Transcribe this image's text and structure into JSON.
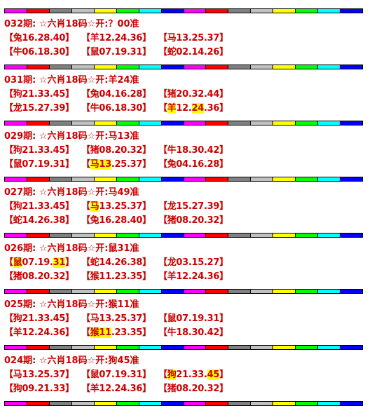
{
  "blocks": [
    {
      "title": "032期: ☆六肖18码☆开:？00准",
      "rows": [
        [
          [
            "【兔16.28.40】"
          ],
          [
            "【羊12.24.36】"
          ],
          [
            "【马13.25.37】"
          ]
        ],
        [
          [
            "【牛06.18.30】"
          ],
          [
            "【鼠07.19.31】"
          ],
          [
            "【蛇02.14.26】"
          ]
        ]
      ]
    },
    {
      "title": "031期: ☆六肖18码☆开:羊24准",
      "rows": [
        [
          [
            "【狗21.33.45】"
          ],
          [
            "【兔04.16.28】"
          ],
          [
            "【猪20.32.44】"
          ]
        ],
        [
          [
            "【龙15.27.39】"
          ],
          [
            "【牛06.18.30】"
          ],
          [
            "【",
            {
              "text": "羊",
              "highlight": true
            },
            "12.",
            {
              "text": "24",
              "highlight": true
            },
            ".36】"
          ]
        ]
      ]
    },
    {
      "title": "029期: ☆六肖18码☆开:马13准",
      "rows": [
        [
          [
            "【狗21.33.45】"
          ],
          [
            "【猪08.20.32】"
          ],
          [
            "【牛18.30.42】"
          ]
        ],
        [
          [
            "【鼠07.19.31】"
          ],
          [
            "【",
            {
              "text": "马13",
              "highlight": true
            },
            ".25.37】"
          ],
          [
            "【兔04.16.28】"
          ]
        ]
      ]
    },
    {
      "title": "027期: ☆六肖18码☆开:马49准",
      "rows": [
        [
          [
            "【狗21.33.45】"
          ],
          [
            "【",
            {
              "text": "马",
              "highlight": true
            },
            "13.25.37】"
          ],
          [
            "【龙15.27.39】"
          ]
        ],
        [
          [
            "【蛇14.26.38】"
          ],
          [
            "【兔16.28.40】"
          ],
          [
            "【猪08.20.32】"
          ]
        ]
      ]
    },
    {
      "title": "026期: ☆六肖18码☆开:鼠31准",
      "rows": [
        [
          [
            "【",
            {
              "text": "鼠",
              "highlight": true
            },
            "07.19.",
            {
              "text": "31",
              "highlight": true
            },
            "】"
          ],
          [
            "【蛇14.26.38】"
          ],
          [
            "【龙03.15.27】"
          ]
        ],
        [
          [
            "【猪08.20.32】"
          ],
          [
            "【猴11.23.35】"
          ],
          [
            "【羊12.24.36】"
          ]
        ]
      ]
    },
    {
      "title": "025期: ☆六肖18码☆开:猴11准",
      "rows": [
        [
          [
            "【狗21.33.45】"
          ],
          [
            "【马13.25.37】"
          ],
          [
            "【鼠07.19.31】"
          ]
        ],
        [
          [
            "【羊12.24.36】"
          ],
          [
            "【",
            {
              "text": "猴11",
              "highlight": true
            },
            ".23.35】"
          ],
          [
            "【牛18.30.42】"
          ]
        ]
      ]
    },
    {
      "title": "024期: ☆六肖18码☆开:狗45准",
      "rows": [
        [
          [
            "【马13.25.37】"
          ],
          [
            "【鼠07.19.31】"
          ],
          [
            "【",
            {
              "text": "狗",
              "highlight": true
            },
            "21.33.",
            {
              "text": "45",
              "highlight": true
            },
            "】"
          ]
        ],
        [
          [
            "【狗09.21.33】"
          ],
          [
            "【羊12.24.36】"
          ],
          [
            "【猪08.20.32】"
          ]
        ]
      ]
    }
  ]
}
